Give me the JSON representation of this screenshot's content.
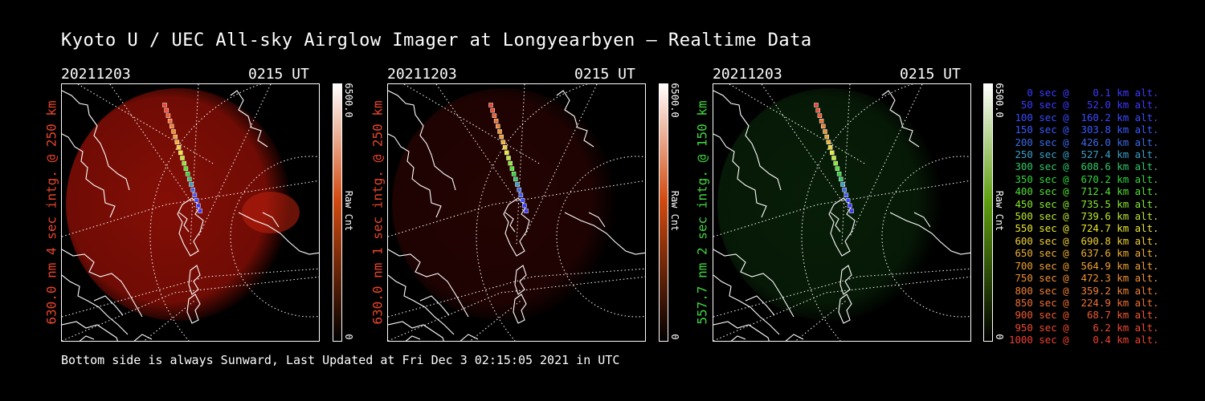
{
  "title": "Kyoto U / UEC All-sky Airglow Imager at Longyearbyen — Realtime Data",
  "footer": "Bottom side is always Sunward, Last Updated at Fri Dec  3 02:15:05 2021 in UTC",
  "colors": {
    "red_label": "#e8452a",
    "green_label": "#3dd63d",
    "background": "#000000"
  },
  "chart_data": [
    {
      "type": "heatmap",
      "date": "20211203",
      "time": "0215 UT",
      "ylabel": "630.0 nm 4 sec intg. @ 250 km",
      "label_color": "#e8452a",
      "colorbar": {
        "min_label": "0",
        "max_label": "6500.0",
        "unit_label": "Raw Cnt",
        "top_color": "#ffffff",
        "mid_color": "#d24a10",
        "low_color": "#000000"
      },
      "glow_color": "#8a0f06",
      "glow_intensity": 0.95
    },
    {
      "type": "heatmap",
      "date": "20211203",
      "time": "0215 UT",
      "ylabel": "630.0 nm 1 sec intg. @ 250 km",
      "label_color": "#e8452a",
      "colorbar": {
        "min_label": "0",
        "max_label": "6500.0",
        "unit_label": "Raw Cnt",
        "top_color": "#ffffff",
        "mid_color": "#d24a10",
        "low_color": "#000000"
      },
      "glow_color": "#3a0604",
      "glow_intensity": 0.6
    },
    {
      "type": "heatmap",
      "date": "20211203",
      "time": "0215 UT",
      "ylabel": "557.7 nm 2 sec intg. @ 150 km",
      "label_color": "#3dd63d",
      "colorbar": {
        "min_label": "0",
        "max_label": "6500.0",
        "unit_label": "Raw Cnt",
        "top_color": "#ffffff",
        "mid_color": "#5fa010",
        "low_color": "#000000"
      },
      "glow_color": "#0b2a0b",
      "glow_intensity": 0.7
    }
  ],
  "trajectory": [
    {
      "label": "   0 sec @    0.1 km alt.",
      "sec": 0,
      "alt_km": 0.1,
      "color": "#3a3aff"
    },
    {
      "label": "  50 sec @   52.0 km alt.",
      "sec": 50,
      "alt_km": 52.0,
      "color": "#3a3aff"
    },
    {
      "label": " 100 sec @  160.2 km alt.",
      "sec": 100,
      "alt_km": 160.2,
      "color": "#3a4aff"
    },
    {
      "label": " 150 sec @  303.8 km alt.",
      "sec": 150,
      "alt_km": 303.8,
      "color": "#3a5aff"
    },
    {
      "label": " 200 sec @  426.0 km alt.",
      "sec": 200,
      "alt_km": 426.0,
      "color": "#3a6ae8"
    },
    {
      "label": " 250 sec @  527.4 km alt.",
      "sec": 250,
      "alt_km": 527.4,
      "color": "#3aa0c8"
    },
    {
      "label": " 300 sec @  608.6 km alt.",
      "sec": 300,
      "alt_km": 608.6,
      "color": "#2ec86a"
    },
    {
      "label": " 350 sec @  670.2 km alt.",
      "sec": 350,
      "alt_km": 670.2,
      "color": "#2ed63a"
    },
    {
      "label": " 400 sec @  712.4 km alt.",
      "sec": 400,
      "alt_km": 712.4,
      "color": "#50e030"
    },
    {
      "label": " 450 sec @  735.5 km alt.",
      "sec": 450,
      "alt_km": 735.5,
      "color": "#8ae830"
    },
    {
      "label": " 500 sec @  739.6 km alt.",
      "sec": 500,
      "alt_km": 739.6,
      "color": "#bce830"
    },
    {
      "label": " 550 sec @  724.7 km alt.",
      "sec": 550,
      "alt_km": 724.7,
      "color": "#e8e830"
    },
    {
      "label": " 600 sec @  690.8 km alt.",
      "sec": 600,
      "alt_km": 690.8,
      "color": "#f0d030"
    },
    {
      "label": " 650 sec @  637.6 km alt.",
      "sec": 650,
      "alt_km": 637.6,
      "color": "#f0b030"
    },
    {
      "label": " 700 sec @  564.9 km alt.",
      "sec": 700,
      "alt_km": 564.9,
      "color": "#f0a030"
    },
    {
      "label": " 750 sec @  472.3 km alt.",
      "sec": 750,
      "alt_km": 472.3,
      "color": "#f09030"
    },
    {
      "label": " 800 sec @  359.2 km alt.",
      "sec": 800,
      "alt_km": 359.2,
      "color": "#f08030"
    },
    {
      "label": " 850 sec @  224.9 km alt.",
      "sec": 850,
      "alt_km": 224.9,
      "color": "#f07030"
    },
    {
      "label": " 900 sec @   68.7 km alt.",
      "sec": 900,
      "alt_km": 68.7,
      "color": "#f05a30"
    },
    {
      "label": " 950 sec @    6.2 km alt.",
      "sec": 950,
      "alt_km": 6.2,
      "color": "#f04a30"
    },
    {
      "label": "1000 sec @    0.4 km alt.",
      "sec": 1000,
      "alt_km": 0.4,
      "color": "#f04030"
    }
  ]
}
